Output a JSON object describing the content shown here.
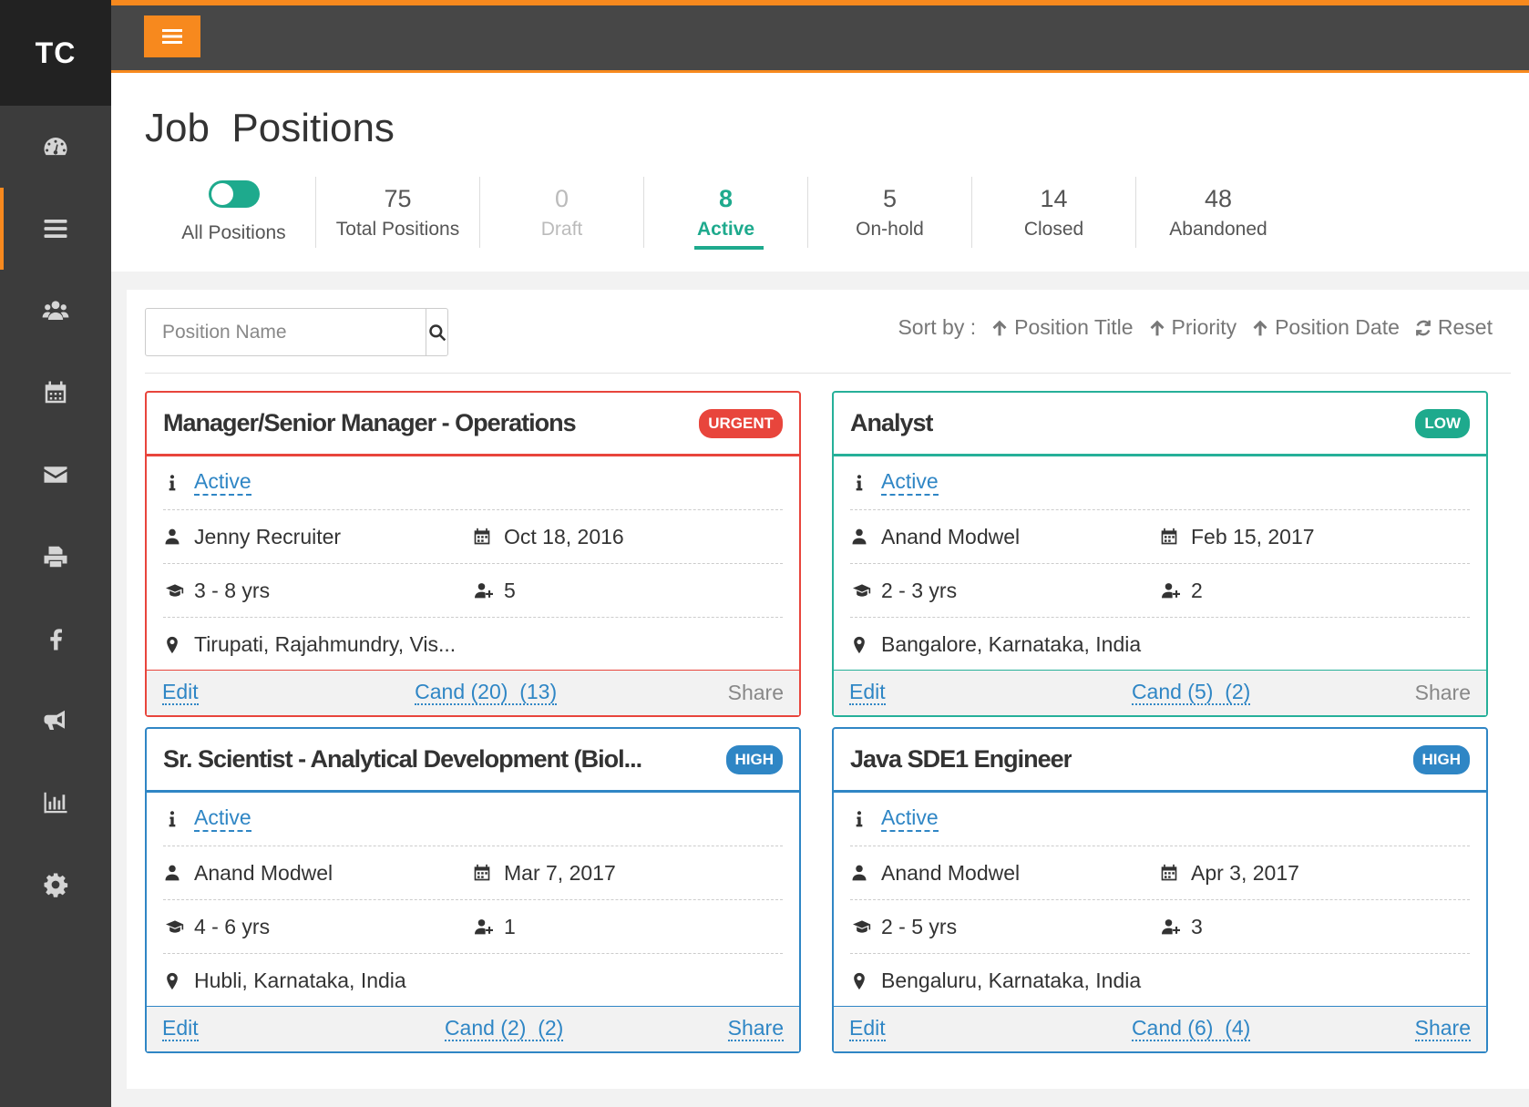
{
  "logo": "TC",
  "sidebar": {
    "items": [
      {
        "icon": "dashboard-icon"
      },
      {
        "icon": "list-icon",
        "active": true
      },
      {
        "icon": "users-icon"
      },
      {
        "icon": "calendar-icon"
      },
      {
        "icon": "mail-icon"
      },
      {
        "icon": "print-icon"
      },
      {
        "icon": "facebook-icon"
      },
      {
        "icon": "megaphone-icon"
      },
      {
        "icon": "bar-chart-icon"
      },
      {
        "icon": "gear-icon"
      }
    ]
  },
  "header": {
    "title": "Job  Positions",
    "stats": {
      "all": {
        "label": "All Positions"
      },
      "total": {
        "num": "75",
        "label": "Total Positions"
      },
      "draft": {
        "num": "0",
        "label": "Draft"
      },
      "active": {
        "num": "8",
        "label": "Active"
      },
      "onhold": {
        "num": "5",
        "label": "On-hold"
      },
      "closed": {
        "num": "14",
        "label": "Closed"
      },
      "abandoned": {
        "num": "48",
        "label": "Abandoned"
      }
    }
  },
  "search": {
    "placeholder": "Position Name"
  },
  "sort": {
    "label": "Sort by :",
    "title": "Position Title",
    "priority": "Priority",
    "date": "Position Date",
    "reset": "Reset"
  },
  "colors": {
    "accent": "#f7891e",
    "teal": "#1eaa8d",
    "urgent": "#e8453c",
    "high": "#2f86c5"
  },
  "cards": [
    {
      "title": "Manager/Senior Manager - Operations",
      "priority": "URGENT",
      "status": "Active",
      "recruiter": "Jenny Recruiter",
      "date": "Oct 18, 2016",
      "experience": "3 - 8 yrs",
      "openings": "5",
      "location": "Tirupati, Rajahmundry, Vis...",
      "edit": "Edit",
      "cand": "Cand (20)  (13)",
      "share": "Share"
    },
    {
      "title": "Analyst",
      "priority": "LOW",
      "status": "Active",
      "recruiter": "Anand Modwel",
      "date": "Feb 15, 2017",
      "experience": "2 - 3 yrs",
      "openings": "2",
      "location": "Bangalore, Karnataka, India",
      "edit": "Edit",
      "cand": "Cand (5)  (2)",
      "share": "Share"
    },
    {
      "title": "Sr. Scientist - Analytical Development (Biol...",
      "priority": "HIGH",
      "status": "Active",
      "recruiter": "Anand Modwel",
      "date": "Mar 7, 2017",
      "experience": "4 - 6 yrs",
      "openings": "1",
      "location": "Hubli, Karnataka, India",
      "edit": "Edit",
      "cand": "Cand (2)  (2)",
      "share": "Share"
    },
    {
      "title": "Java SDE1 Engineer",
      "priority": "HIGH",
      "status": "Active",
      "recruiter": "Anand Modwel",
      "date": "Apr 3, 2017",
      "experience": "2 - 5 yrs",
      "openings": "3",
      "location": "Bengaluru, Karnataka, India",
      "edit": "Edit",
      "cand": "Cand (6)  (4)",
      "share": "Share"
    }
  ]
}
